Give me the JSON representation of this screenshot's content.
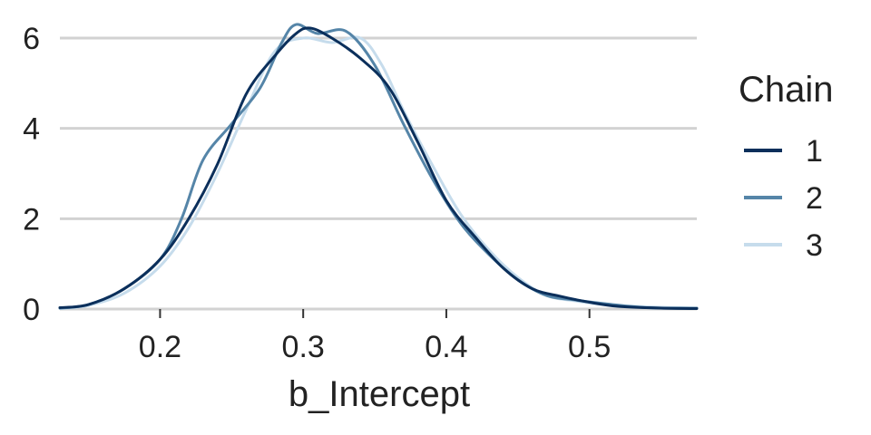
{
  "chart_data": {
    "type": "line",
    "title": "",
    "xlabel": "b_Intercept",
    "ylabel": "",
    "xlim": [
      0.13,
      0.575
    ],
    "ylim": [
      0,
      6
    ],
    "x_ticks": [
      0.2,
      0.3,
      0.4,
      0.5
    ],
    "x_tick_labels": [
      "0.2",
      "0.3",
      "0.4",
      "0.5"
    ],
    "y_ticks": [
      0,
      2,
      4,
      6
    ],
    "y_tick_labels": [
      "0",
      "2",
      "4",
      "6"
    ],
    "grid": "horizontal",
    "legend": {
      "title": "Chain",
      "placement": "right"
    },
    "series": [
      {
        "name": "1",
        "color": "#0b2f5b",
        "points": [
          [
            0.13,
            0.03
          ],
          [
            0.15,
            0.1
          ],
          [
            0.175,
            0.45
          ],
          [
            0.2,
            1.1
          ],
          [
            0.22,
            2.0
          ],
          [
            0.24,
            3.2
          ],
          [
            0.26,
            4.75
          ],
          [
            0.28,
            5.6
          ],
          [
            0.295,
            6.1
          ],
          [
            0.305,
            6.22
          ],
          [
            0.32,
            6.0
          ],
          [
            0.34,
            5.55
          ],
          [
            0.36,
            4.9
          ],
          [
            0.38,
            3.7
          ],
          [
            0.4,
            2.4
          ],
          [
            0.42,
            1.6
          ],
          [
            0.44,
            0.9
          ],
          [
            0.46,
            0.45
          ],
          [
            0.48,
            0.28
          ],
          [
            0.5,
            0.15
          ],
          [
            0.52,
            0.06
          ],
          [
            0.55,
            0.02
          ],
          [
            0.575,
            0.01
          ]
        ]
      },
      {
        "name": "2",
        "color": "#5585a8",
        "points": [
          [
            0.13,
            0.02
          ],
          [
            0.15,
            0.1
          ],
          [
            0.175,
            0.45
          ],
          [
            0.2,
            1.1
          ],
          [
            0.215,
            2.0
          ],
          [
            0.23,
            3.3
          ],
          [
            0.25,
            4.1
          ],
          [
            0.27,
            4.9
          ],
          [
            0.285,
            5.9
          ],
          [
            0.295,
            6.3
          ],
          [
            0.31,
            6.1
          ],
          [
            0.33,
            6.15
          ],
          [
            0.35,
            5.4
          ],
          [
            0.37,
            4.1
          ],
          [
            0.39,
            2.9
          ],
          [
            0.41,
            1.9
          ],
          [
            0.43,
            1.2
          ],
          [
            0.45,
            0.65
          ],
          [
            0.47,
            0.3
          ],
          [
            0.49,
            0.2
          ],
          [
            0.51,
            0.12
          ],
          [
            0.54,
            0.03
          ],
          [
            0.575,
            0.02
          ]
        ]
      },
      {
        "name": "3",
        "color": "#c6dcec",
        "points": [
          [
            0.13,
            0.01
          ],
          [
            0.15,
            0.08
          ],
          [
            0.175,
            0.35
          ],
          [
            0.2,
            0.95
          ],
          [
            0.22,
            1.8
          ],
          [
            0.24,
            3.0
          ],
          [
            0.26,
            4.4
          ],
          [
            0.28,
            5.7
          ],
          [
            0.3,
            6.0
          ],
          [
            0.32,
            5.9
          ],
          [
            0.34,
            6.0
          ],
          [
            0.355,
            5.4
          ],
          [
            0.37,
            4.4
          ],
          [
            0.39,
            3.2
          ],
          [
            0.41,
            2.1
          ],
          [
            0.43,
            1.3
          ],
          [
            0.45,
            0.7
          ],
          [
            0.47,
            0.3
          ],
          [
            0.49,
            0.18
          ],
          [
            0.51,
            0.1
          ],
          [
            0.54,
            0.05
          ],
          [
            0.575,
            0.02
          ]
        ]
      }
    ]
  }
}
